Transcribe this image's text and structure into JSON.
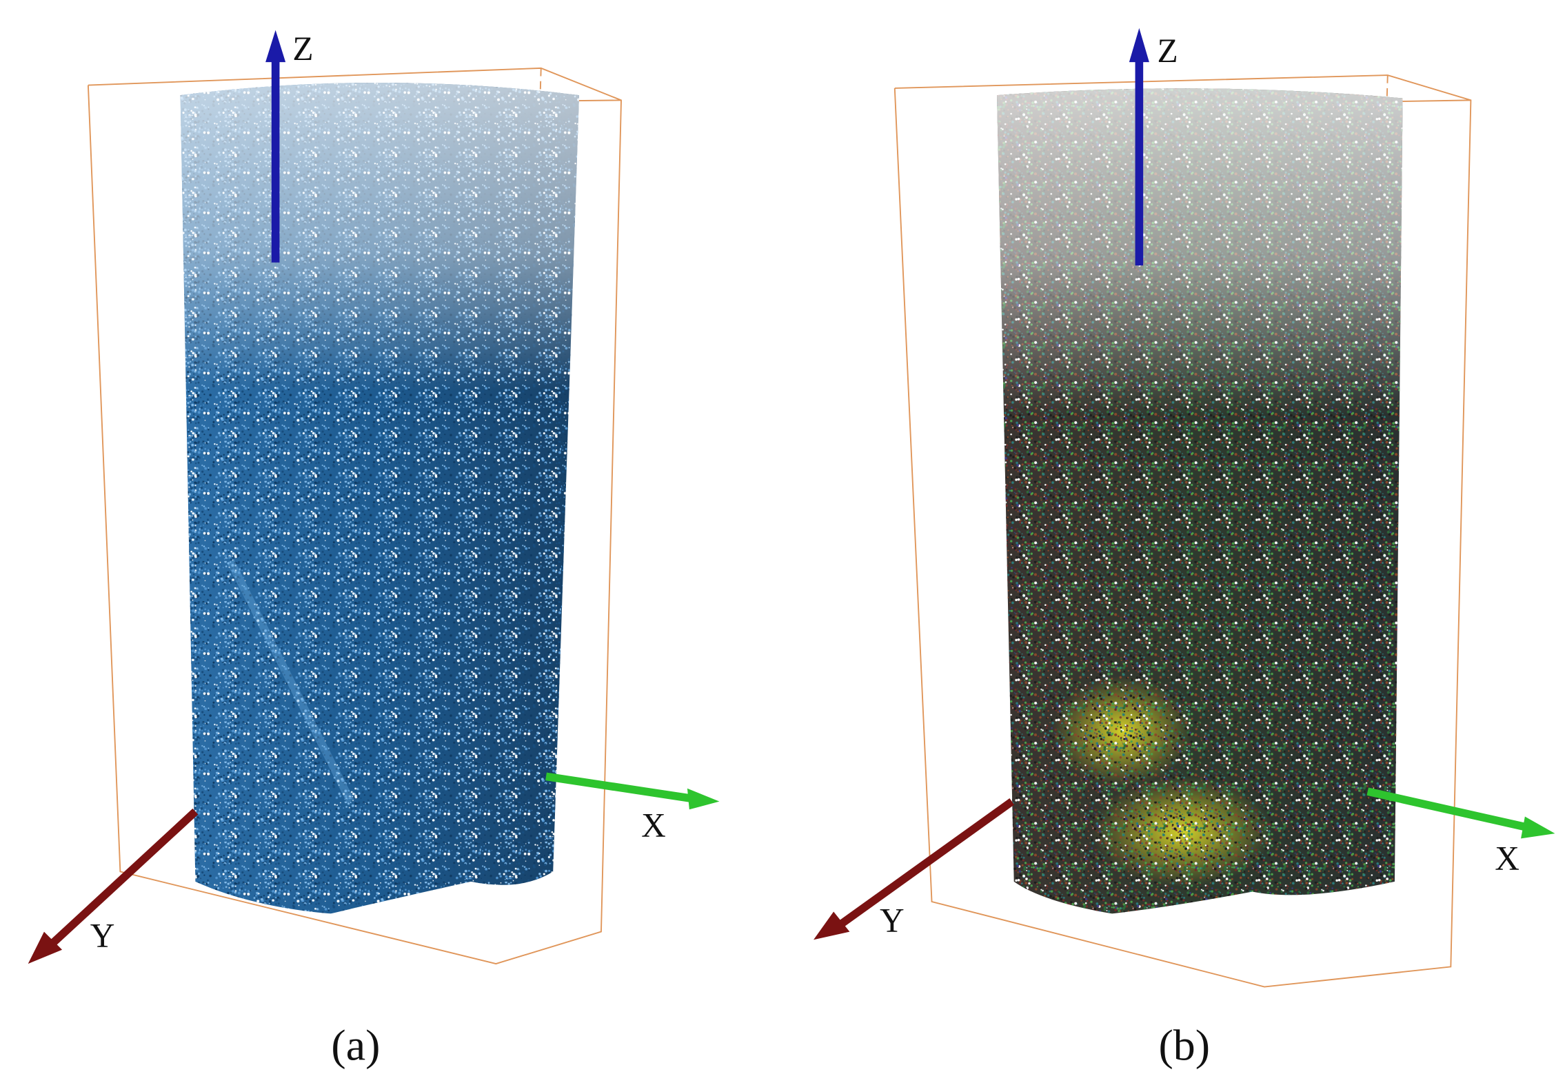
{
  "panels": [
    {
      "label": "(a)",
      "axes": {
        "z": "Z",
        "x": "X",
        "y": "Y"
      }
    },
    {
      "label": "(b)",
      "axes": {
        "z": "Z",
        "x": "X",
        "y": "Y"
      }
    }
  ]
}
